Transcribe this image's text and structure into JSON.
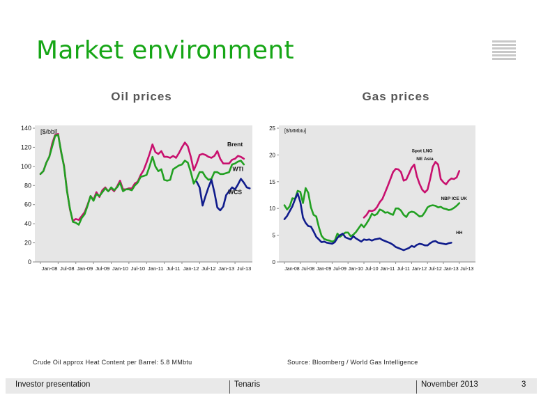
{
  "slide": {
    "title": "Market environment",
    "notes": {
      "left": "Crude Oil approx Heat Content per Barrel: 5.8 MMbtu",
      "right": "Source:  Bloomberg / World Gas Intelligence"
    },
    "footer": {
      "left": "Investor presentation",
      "center": "Tenaris",
      "date": "November 2013",
      "page": "3"
    },
    "colors": {
      "title": "#16a616",
      "magenta": "#c8106e",
      "green": "#22a022",
      "navy": "#101c8c"
    }
  },
  "chart_data": [
    {
      "type": "line",
      "title": "Oil prices",
      "unit_label": "[$/bbl]",
      "ylim": [
        0,
        140
      ],
      "yticks": [
        0,
        20,
        40,
        60,
        80,
        100,
        120,
        140
      ],
      "xlim": [
        0,
        70
      ],
      "xtick_labels": [
        "Jan-08",
        "Jul-08",
        "Jan-09",
        "Jul-09",
        "Jan-10",
        "Jul-10",
        "Jan-11",
        "Jul-11",
        "Jan-12",
        "Jul-12",
        "Jan-13",
        "Jul-13"
      ],
      "xtick_months": [
        0,
        6,
        12,
        18,
        24,
        30,
        36,
        42,
        48,
        54,
        60,
        66
      ],
      "grid": false,
      "series": [
        {
          "name": "Brent",
          "color": "#c8106e",
          "start": 0,
          "values": [
            92,
            95,
            104,
            110,
            124,
            133,
            134,
            115,
            101,
            75,
            55,
            43,
            45,
            44,
            48,
            52,
            60,
            69,
            65,
            73,
            68,
            75,
            78,
            74,
            77,
            74,
            79,
            85,
            76,
            76,
            77,
            77,
            82,
            84,
            91,
            96,
            104,
            113,
            123,
            115,
            113,
            116,
            110,
            110,
            109,
            111,
            109,
            114,
            120,
            125,
            121,
            110,
            96,
            103,
            112,
            113,
            112,
            110,
            109,
            111,
            116,
            108,
            103,
            103,
            103,
            107,
            108,
            111,
            110,
            108
          ]
        },
        {
          "name": "WTI",
          "color": "#22a022",
          "start": 0,
          "values": [
            92,
            95,
            104,
            110,
            121,
            132,
            133,
            116,
            100,
            74,
            56,
            42,
            41,
            39,
            46,
            50,
            59,
            69,
            64,
            71,
            69,
            73,
            77,
            74,
            78,
            75,
            78,
            83,
            74,
            76,
            76,
            75,
            80,
            83,
            89,
            90,
            91,
            100,
            110,
            100,
            95,
            97,
            86,
            85,
            86,
            97,
            99,
            101,
            102,
            106,
            104,
            94,
            82,
            87,
            94,
            94,
            89,
            86,
            87,
            94,
            94,
            92,
            92,
            93,
            94,
            102,
            103,
            105,
            106,
            102
          ]
        },
        {
          "name": "WCS",
          "color": "#101c8c",
          "start": 53,
          "values": [
            84,
            78,
            59,
            69,
            78,
            86,
            73,
            57,
            54,
            58,
            70,
            74,
            78,
            76,
            81,
            87,
            83,
            78,
            77
          ]
        }
      ],
      "annotations": [
        {
          "text": "Brent",
          "x": 66,
          "y": 121
        },
        {
          "text": "WTI",
          "x": 67,
          "y": 95
        },
        {
          "text": "WCS",
          "x": 66,
          "y": 71
        }
      ]
    },
    {
      "type": "line",
      "title": "Gas prices",
      "unit_label": "[$/MMbtu]",
      "ylim": [
        0,
        25
      ],
      "yticks": [
        0,
        5,
        10,
        15,
        20,
        25
      ],
      "xlim": [
        0,
        70
      ],
      "xtick_labels": [
        "Jan-08",
        "Jul-08",
        "Jan-09",
        "Jul-09",
        "Jan-10",
        "Jul-10",
        "Jan-11",
        "Jul-11",
        "Jan-12",
        "Jul-12",
        "Jan-13",
        "Jul-13"
      ],
      "xtick_months": [
        0,
        6,
        12,
        18,
        24,
        30,
        36,
        42,
        48,
        54,
        60,
        66
      ],
      "grid": false,
      "series": [
        {
          "name": "Spot LNG NE Asia",
          "color": "#c8106e",
          "start": 30,
          "values": [
            8.3,
            8.8,
            9.6,
            9.5,
            9.7,
            10.3,
            11.2,
            11.8,
            13,
            14.2,
            15.5,
            16.8,
            17.4,
            17.3,
            16.8,
            15.2,
            15.4,
            16.5,
            17.6,
            18.2,
            16,
            14.6,
            13.5,
            13,
            13.5,
            15.5,
            17.8,
            18.7,
            18.2,
            15.5,
            14.9,
            14.5,
            15.2,
            15.6,
            15.5,
            15.8,
            17
          ]
        },
        {
          "name": "NBP ICE UK",
          "color": "#22a022",
          "start": 0,
          "values": [
            10.6,
            9.8,
            10.4,
            11.9,
            11.8,
            13.3,
            13.1,
            11,
            13.8,
            12.9,
            10.2,
            8.8,
            8.5,
            6.5,
            4.9,
            4.3,
            4.1,
            4,
            3.8,
            4,
            5.3,
            4.7,
            5.1,
            5.5,
            5.5,
            4.8,
            5.1,
            5.6,
            6.3,
            7,
            6.5,
            7.2,
            8,
            9,
            8.7,
            9,
            9.8,
            9.6,
            9.2,
            9.3,
            9,
            8.8,
            10,
            10,
            9.6,
            8.8,
            8.4,
            9.2,
            9.4,
            9.3,
            8.9,
            8.5,
            8.6,
            9.3,
            10.2,
            10.5,
            10.6,
            10.5,
            10.2,
            10.3,
            10,
            9.9,
            9.7,
            9.8,
            10.1,
            10.5,
            11
          ]
        },
        {
          "name": "HH",
          "color": "#101c8c",
          "start": 0,
          "values": [
            8,
            8.6,
            9.5,
            10.4,
            11.7,
            12.8,
            11.2,
            8.3,
            7.3,
            6.7,
            6.6,
            5.7,
            4.7,
            4.2,
            3.7,
            3.8,
            3.6,
            3.5,
            3.4,
            3.7,
            4.5,
            5,
            5.3,
            4.6,
            4.4,
            4.2,
            4.8,
            4.4,
            4.1,
            3.8,
            4.2,
            4.1,
            4.2,
            4,
            4.2,
            4.3,
            4.4,
            4.1,
            3.9,
            3.7,
            3.5,
            3.2,
            2.8,
            2.6,
            2.4,
            2.2,
            2.4,
            2.6,
            3,
            2.8,
            3.2,
            3.4,
            3.3,
            3.1,
            3.1,
            3.5,
            3.8,
            3.9,
            3.6,
            3.5,
            3.4,
            3.3,
            3.5,
            3.6
          ]
        }
      ],
      "annotations": [
        {
          "text": "Spot LNG",
          "x": 52,
          "y": 20.5
        },
        {
          "text": "NE Asia",
          "x": 53,
          "y": 19
        },
        {
          "text": "NBP ICE UK",
          "x": 64,
          "y": 11.6
        },
        {
          "text": "HH",
          "x": 66,
          "y": 5.2
        }
      ]
    }
  ]
}
